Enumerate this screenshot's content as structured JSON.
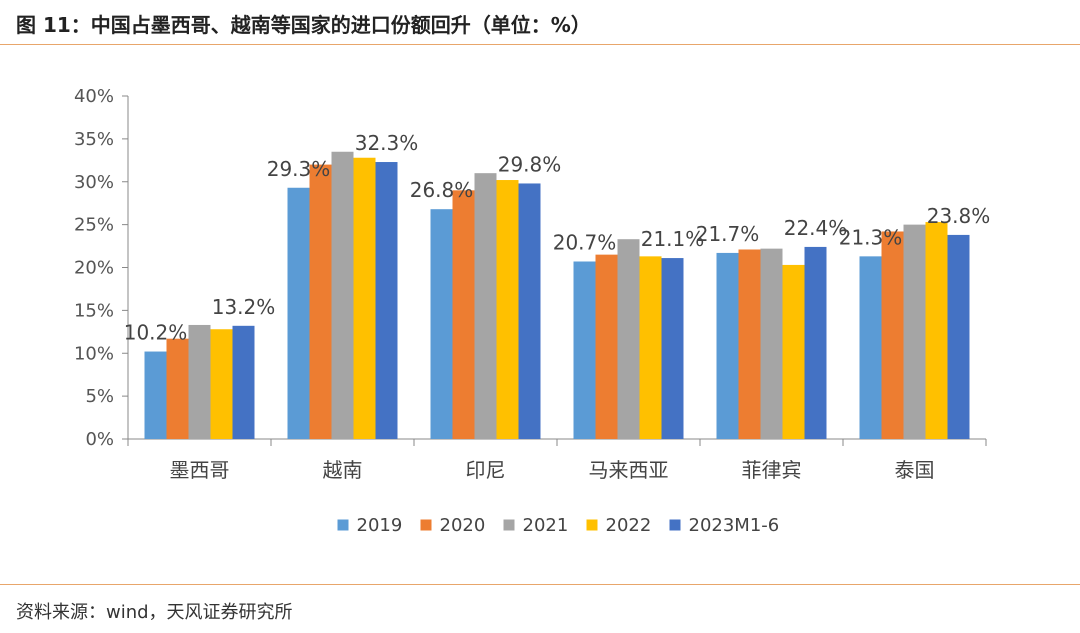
{
  "figure": {
    "title": "图 11：中国占墨西哥、越南等国家的进口份额回升（单位：%）",
    "source": "资料来源：wind，天风证券研究所"
  },
  "chart_data": {
    "type": "bar",
    "categories": [
      "墨西哥",
      "越南",
      "印尼",
      "马来西亚",
      "菲律宾",
      "泰国"
    ],
    "series": [
      {
        "name": "2019",
        "color": "#5b9bd5",
        "values": [
          10.2,
          29.3,
          26.8,
          20.7,
          21.7,
          21.3
        ]
      },
      {
        "name": "2020",
        "color": "#ed7d31",
        "values": [
          11.7,
          32.0,
          29.0,
          21.5,
          22.1,
          24.2
        ]
      },
      {
        "name": "2021",
        "color": "#a5a5a5",
        "values": [
          13.3,
          33.5,
          31.0,
          23.3,
          22.2,
          25.0
        ]
      },
      {
        "name": "2022",
        "color": "#ffc000",
        "values": [
          12.8,
          32.8,
          30.2,
          21.3,
          20.3,
          25.3
        ]
      },
      {
        "name": "2023M1-6",
        "color": "#4472c4",
        "values": [
          13.2,
          32.3,
          29.8,
          21.1,
          22.4,
          23.8
        ]
      }
    ],
    "data_labels": [
      {
        "category": 0,
        "series": 0,
        "text": "10.2%"
      },
      {
        "category": 0,
        "series": 4,
        "text": "13.2%"
      },
      {
        "category": 1,
        "series": 0,
        "text": "29.3%"
      },
      {
        "category": 1,
        "series": 4,
        "text": "32.3%"
      },
      {
        "category": 2,
        "series": 0,
        "text": "26.8%"
      },
      {
        "category": 2,
        "series": 4,
        "text": "29.8%"
      },
      {
        "category": 3,
        "series": 0,
        "text": "20.7%"
      },
      {
        "category": 3,
        "series": 4,
        "text": "21.1%"
      },
      {
        "category": 4,
        "series": 0,
        "text": "21.7%"
      },
      {
        "category": 4,
        "series": 4,
        "text": "22.4%"
      },
      {
        "category": 5,
        "series": 0,
        "text": "21.3%"
      },
      {
        "category": 5,
        "series": 4,
        "text": "23.8%"
      }
    ],
    "yticks": [
      "0%",
      "5%",
      "10%",
      "15%",
      "20%",
      "25%",
      "30%",
      "35%",
      "40%"
    ],
    "ylim": [
      0,
      40
    ],
    "grid": false,
    "legend_position": "bottom"
  }
}
